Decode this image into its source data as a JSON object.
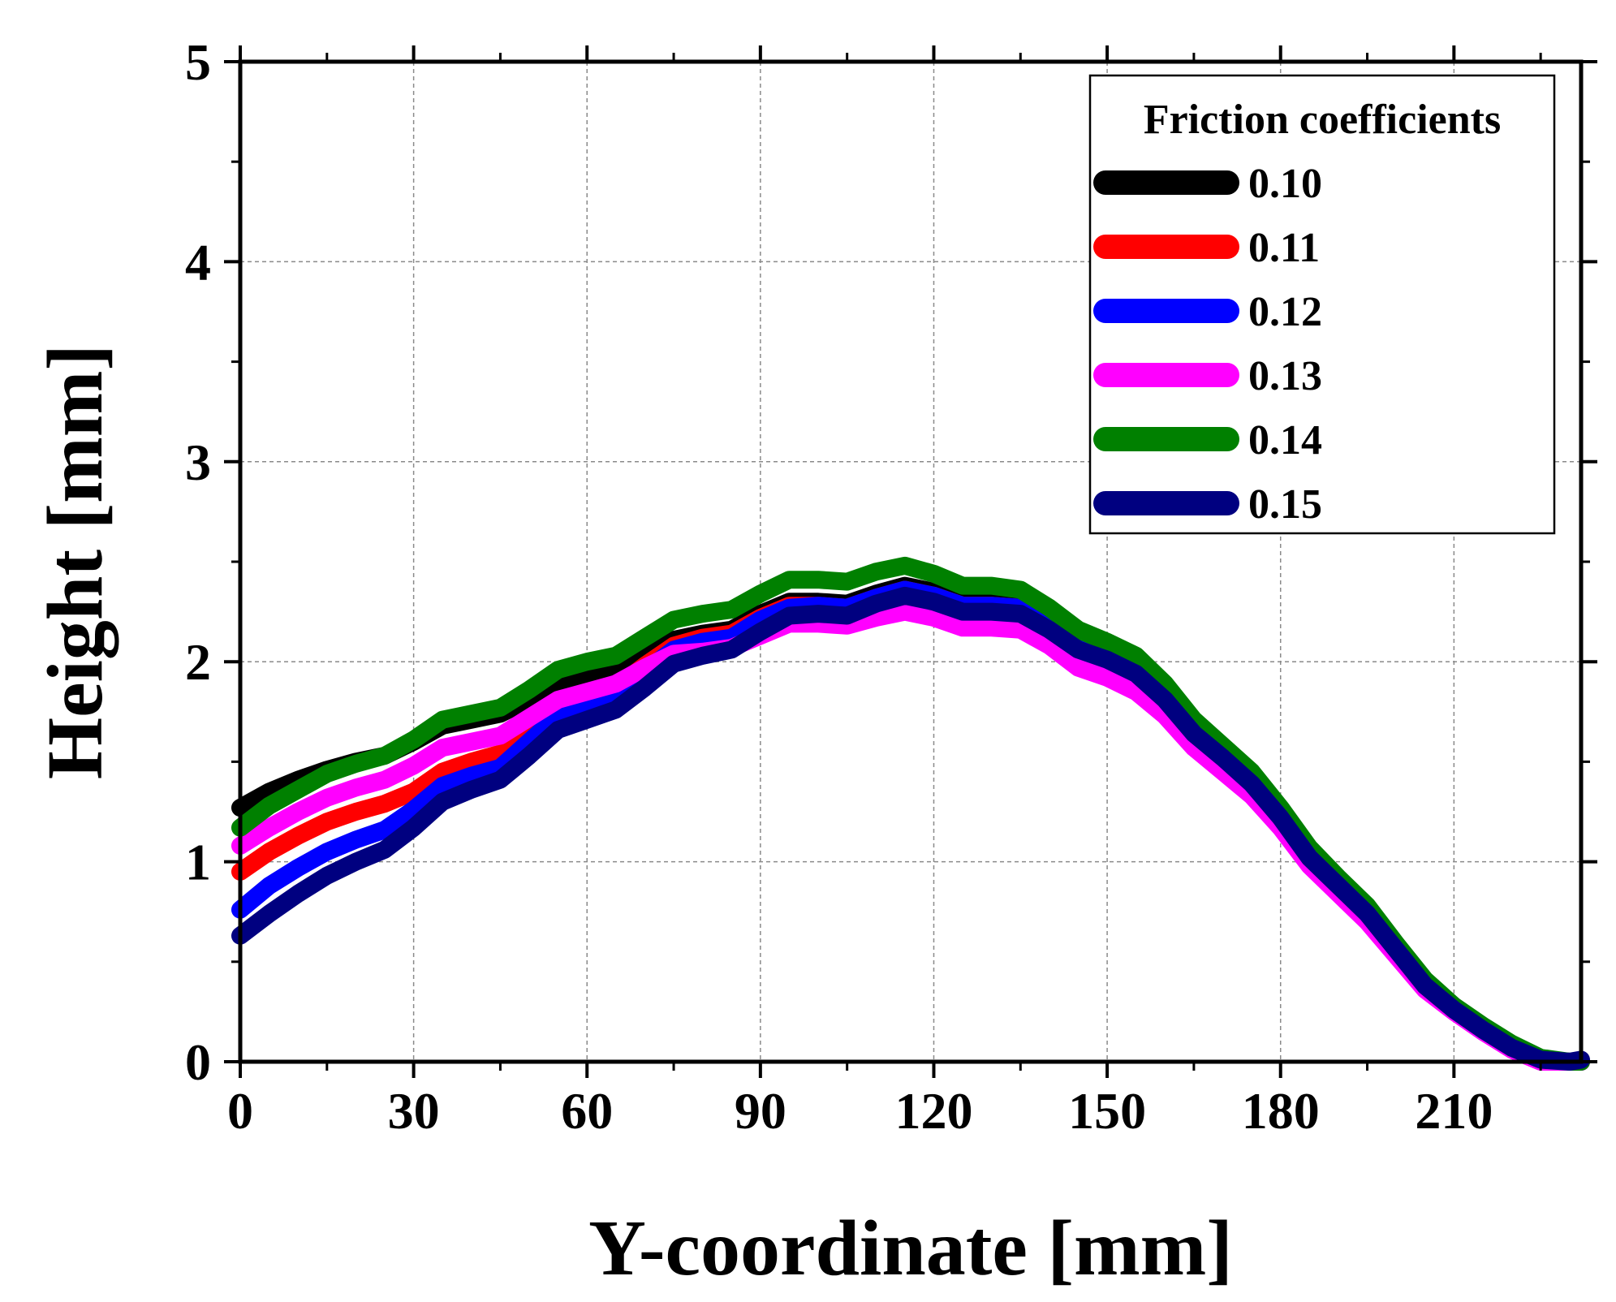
{
  "chart_data": {
    "type": "line",
    "title": "",
    "xlabel": "Y-coordinate [mm]",
    "ylabel": "Height [mm]",
    "xlim": [
      0,
      232
    ],
    "ylim": [
      0,
      5
    ],
    "xticks": [
      0,
      30,
      60,
      90,
      120,
      150,
      180,
      210
    ],
    "yticks": [
      0,
      1,
      2,
      3,
      4,
      5
    ],
    "xtick_labels": [
      "0",
      "30",
      "60",
      "90",
      "120",
      "150",
      "180",
      "210"
    ],
    "ytick_labels": [
      "0",
      "1",
      "2",
      "3",
      "4",
      "5"
    ],
    "grid": true,
    "legend_title": "Friction coefficients",
    "legend_position": "top-right",
    "x": [
      0,
      5,
      10,
      15,
      20,
      25,
      30,
      35,
      40,
      45,
      50,
      55,
      60,
      65,
      70,
      75,
      80,
      85,
      90,
      95,
      100,
      105,
      110,
      115,
      120,
      125,
      130,
      135,
      140,
      145,
      150,
      155,
      160,
      165,
      170,
      175,
      180,
      185,
      190,
      195,
      200,
      205,
      210,
      215,
      220,
      225,
      230,
      232
    ],
    "series": [
      {
        "name": "0.10",
        "color": "#000000",
        "values": [
          1.27,
          1.35,
          1.41,
          1.46,
          1.5,
          1.53,
          1.6,
          1.68,
          1.71,
          1.74,
          1.81,
          1.89,
          1.93,
          1.95,
          2.03,
          2.11,
          2.14,
          2.16,
          2.24,
          2.3,
          2.3,
          2.29,
          2.34,
          2.38,
          2.35,
          2.3,
          2.3,
          2.28,
          2.2,
          2.1,
          2.05,
          1.98,
          1.85,
          1.68,
          1.55,
          1.42,
          1.25,
          1.05,
          0.9,
          0.76,
          0.58,
          0.4,
          0.27,
          0.17,
          0.08,
          0.01,
          0.0,
          0.0
        ]
      },
      {
        "name": "0.11",
        "color": "#ff0000",
        "values": [
          0.95,
          1.05,
          1.13,
          1.2,
          1.25,
          1.29,
          1.35,
          1.45,
          1.5,
          1.54,
          1.65,
          1.77,
          1.82,
          1.87,
          1.98,
          2.08,
          2.12,
          2.14,
          2.22,
          2.28,
          2.28,
          2.27,
          2.32,
          2.36,
          2.33,
          2.28,
          2.28,
          2.27,
          2.19,
          2.09,
          2.04,
          1.97,
          1.84,
          1.67,
          1.54,
          1.41,
          1.24,
          1.04,
          0.89,
          0.75,
          0.57,
          0.39,
          0.27,
          0.17,
          0.08,
          0.01,
          0.0,
          0.0
        ]
      },
      {
        "name": "0.12",
        "color": "#0000ff",
        "values": [
          0.76,
          0.88,
          0.97,
          1.05,
          1.11,
          1.16,
          1.26,
          1.38,
          1.43,
          1.47,
          1.6,
          1.73,
          1.78,
          1.83,
          1.95,
          2.06,
          2.1,
          2.12,
          2.21,
          2.27,
          2.28,
          2.27,
          2.32,
          2.36,
          2.33,
          2.28,
          2.28,
          2.27,
          2.19,
          2.08,
          2.03,
          1.96,
          1.83,
          1.66,
          1.53,
          1.4,
          1.23,
          1.03,
          0.88,
          0.74,
          0.56,
          0.38,
          0.26,
          0.16,
          0.07,
          0.01,
          0.0,
          0.0
        ]
      },
      {
        "name": "0.13",
        "color": "#ff00ff",
        "values": [
          1.08,
          1.17,
          1.25,
          1.32,
          1.37,
          1.41,
          1.48,
          1.57,
          1.6,
          1.63,
          1.72,
          1.81,
          1.85,
          1.89,
          1.97,
          2.04,
          2.05,
          2.07,
          2.13,
          2.19,
          2.19,
          2.18,
          2.22,
          2.25,
          2.22,
          2.17,
          2.17,
          2.16,
          2.08,
          1.97,
          1.92,
          1.85,
          1.73,
          1.57,
          1.45,
          1.33,
          1.17,
          0.98,
          0.84,
          0.7,
          0.53,
          0.36,
          0.25,
          0.15,
          0.06,
          0.0,
          0.0,
          0.0
        ]
      },
      {
        "name": "0.14",
        "color": "#008000",
        "values": [
          1.17,
          1.28,
          1.36,
          1.44,
          1.49,
          1.53,
          1.61,
          1.71,
          1.74,
          1.77,
          1.86,
          1.96,
          2.0,
          2.03,
          2.12,
          2.21,
          2.24,
          2.26,
          2.34,
          2.41,
          2.41,
          2.4,
          2.45,
          2.48,
          2.44,
          2.38,
          2.38,
          2.36,
          2.27,
          2.16,
          2.1,
          2.03,
          1.89,
          1.71,
          1.58,
          1.45,
          1.27,
          1.07,
          0.92,
          0.78,
          0.59,
          0.41,
          0.28,
          0.18,
          0.09,
          0.02,
          0.0,
          0.0
        ]
      },
      {
        "name": "0.15",
        "color": "#000080",
        "values": [
          0.63,
          0.74,
          0.84,
          0.93,
          1.0,
          1.06,
          1.17,
          1.3,
          1.36,
          1.41,
          1.53,
          1.66,
          1.71,
          1.76,
          1.87,
          1.99,
          2.03,
          2.06,
          2.15,
          2.23,
          2.24,
          2.23,
          2.29,
          2.33,
          2.3,
          2.25,
          2.25,
          2.24,
          2.16,
          2.06,
          2.01,
          1.94,
          1.81,
          1.64,
          1.52,
          1.39,
          1.22,
          1.02,
          0.88,
          0.74,
          0.56,
          0.38,
          0.26,
          0.16,
          0.07,
          0.01,
          0.0,
          0.01
        ]
      }
    ]
  }
}
